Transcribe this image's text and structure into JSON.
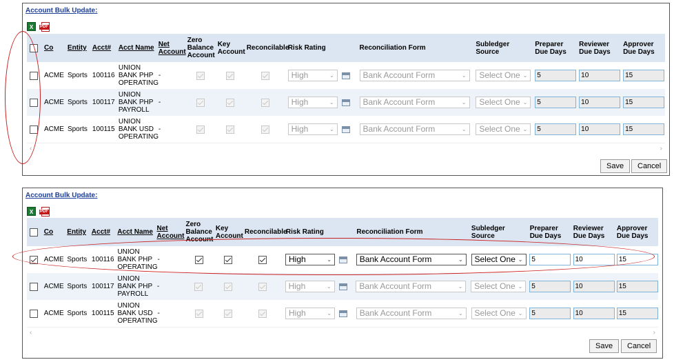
{
  "panels": [
    {
      "title": "Account Bulk Update:",
      "headers": {
        "co": "Co",
        "entity": "Entity",
        "acct": "Acct#",
        "acct_name": "Acct Name",
        "net_account": "Net Account",
        "zero_balance": "Zero Balance Account",
        "key_account": "Key Account",
        "reconcilable": "Reconcilable",
        "risk_rating": "Risk Rating",
        "recon_form": "Reconciliation Form",
        "subledger": "Subledger Source",
        "preparer_due": "Preparer Due Days",
        "reviewer_due": "Reviewer Due Days",
        "approver_due": "Approver Due Days"
      },
      "rows": [
        {
          "selected": false,
          "co": "ACME",
          "entity": "Sports",
          "acct": "100116",
          "acct_name": "UNION BANK PHP OPERATING",
          "net_account": "-",
          "zero_balance": true,
          "key_account": true,
          "reconcilable": true,
          "risk_rating": "High",
          "recon_form": "Bank Account Form",
          "subledger": "Select One",
          "preparer_due": "5",
          "reviewer_due": "10",
          "approver_due": "15"
        },
        {
          "selected": false,
          "co": "ACME",
          "entity": "Sports",
          "acct": "100117",
          "acct_name": "UNION BANK PHP PAYROLL",
          "net_account": "-",
          "zero_balance": true,
          "key_account": true,
          "reconcilable": true,
          "risk_rating": "High",
          "recon_form": "Bank Account Form",
          "subledger": "Select One",
          "preparer_due": "5",
          "reviewer_due": "10",
          "approver_due": "15"
        },
        {
          "selected": false,
          "co": "ACME",
          "entity": "Sports",
          "acct": "100115",
          "acct_name": "UNION BANK USD OPERATING",
          "net_account": "-",
          "zero_balance": true,
          "key_account": true,
          "reconcilable": true,
          "risk_rating": "High",
          "recon_form": "Bank Account Form",
          "subledger": "Select One",
          "preparer_due": "5",
          "reviewer_due": "10",
          "approver_due": "15"
        }
      ],
      "save_label": "Save",
      "cancel_label": "Cancel"
    },
    {
      "title": "Account Bulk Update:",
      "headers": {
        "co": "Co",
        "entity": "Entity",
        "acct": "Acct#",
        "acct_name": "Acct Name",
        "net_account": "Net Account",
        "zero_balance": "Zero Balance Account",
        "key_account": "Key Account",
        "reconcilable": "Reconcilable",
        "risk_rating": "Risk Rating",
        "recon_form": "Reconciliation Form",
        "subledger": "Subledger Source",
        "preparer_due": "Preparer Due Days",
        "reviewer_due": "Reviewer Due Days",
        "approver_due": "Approver Due Days"
      },
      "rows": [
        {
          "selected": true,
          "co": "ACME",
          "entity": "Sports",
          "acct": "100116",
          "acct_name": "UNION BANK PHP OPERATING",
          "net_account": "-",
          "zero_balance": true,
          "key_account": true,
          "reconcilable": true,
          "risk_rating": "High",
          "recon_form": "Bank Account Form",
          "subledger": "Select One",
          "preparer_due": "5",
          "reviewer_due": "10",
          "approver_due": "15"
        },
        {
          "selected": false,
          "co": "ACME",
          "entity": "Sports",
          "acct": "100117",
          "acct_name": "UNION BANK PHP PAYROLL",
          "net_account": "-",
          "zero_balance": true,
          "key_account": true,
          "reconcilable": true,
          "risk_rating": "High",
          "recon_form": "Bank Account Form",
          "subledger": "Select One",
          "preparer_due": "5",
          "reviewer_due": "10",
          "approver_due": "15"
        },
        {
          "selected": false,
          "co": "ACME",
          "entity": "Sports",
          "acct": "100115",
          "acct_name": "UNION BANK USD OPERATING",
          "net_account": "-",
          "zero_balance": true,
          "key_account": true,
          "reconcilable": true,
          "risk_rating": "High",
          "recon_form": "Bank Account Form",
          "subledger": "Select One",
          "preparer_due": "5",
          "reviewer_due": "10",
          "approver_due": "15"
        }
      ],
      "save_label": "Save",
      "cancel_label": "Cancel"
    }
  ],
  "icons": {
    "export_excel": "excel-icon",
    "export_pdf": "pdf-icon",
    "calendar": "calendar-icon"
  },
  "colors": {
    "header_bg": "#dce6f2",
    "alt_row_bg": "#eef3f9",
    "title_link": "#1f3f99",
    "annotation": "#c81f1f",
    "input_border": "#7fb4d8"
  }
}
